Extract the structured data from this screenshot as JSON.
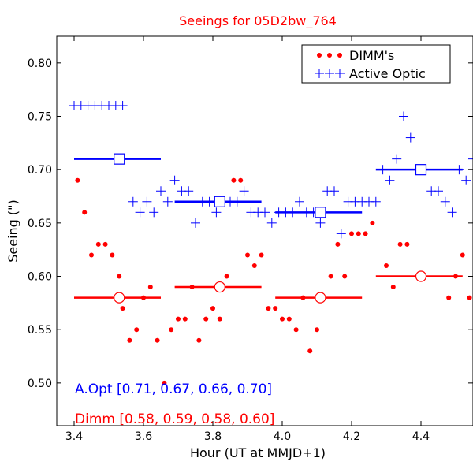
{
  "chart_data": {
    "type": "scatter",
    "title": "Seeings for 05D2bw_764",
    "xlabel": "Hour (UT at MMJD+1)",
    "ylabel": "Seeing (\")",
    "xlim": [
      3.35,
      4.55
    ],
    "ylim": [
      0.46,
      0.825
    ],
    "x_ticks": [
      "3.4",
      "3.6",
      "3.8",
      "4.0",
      "4.2",
      "4.4"
    ],
    "y_ticks": [
      "0.50",
      "0.55",
      "0.60",
      "0.65",
      "0.70",
      "0.75",
      "0.80"
    ],
    "grid": false,
    "legend_placement": "top-right",
    "colors": {
      "dimm": "#ff0000",
      "active_optic": "#0000ff",
      "title": "#ff0000"
    },
    "series": [
      {
        "name": "DIMM's",
        "marker": "dot",
        "color": "#ff0000",
        "points": [
          [
            3.41,
            0.69
          ],
          [
            3.43,
            0.66
          ],
          [
            3.45,
            0.62
          ],
          [
            3.47,
            0.63
          ],
          [
            3.49,
            0.63
          ],
          [
            3.51,
            0.62
          ],
          [
            3.53,
            0.6
          ],
          [
            3.54,
            0.57
          ],
          [
            3.56,
            0.54
          ],
          [
            3.58,
            0.55
          ],
          [
            3.6,
            0.58
          ],
          [
            3.62,
            0.59
          ],
          [
            3.64,
            0.54
          ],
          [
            3.66,
            0.5
          ],
          [
            3.68,
            0.55
          ],
          [
            3.7,
            0.56
          ],
          [
            3.72,
            0.56
          ],
          [
            3.74,
            0.59
          ],
          [
            3.76,
            0.54
          ],
          [
            3.78,
            0.56
          ],
          [
            3.8,
            0.57
          ],
          [
            3.82,
            0.56
          ],
          [
            3.84,
            0.6
          ],
          [
            3.86,
            0.69
          ],
          [
            3.88,
            0.69
          ],
          [
            3.9,
            0.62
          ],
          [
            3.92,
            0.61
          ],
          [
            3.94,
            0.62
          ],
          [
            3.96,
            0.57
          ],
          [
            3.98,
            0.57
          ],
          [
            4.0,
            0.56
          ],
          [
            4.02,
            0.56
          ],
          [
            4.04,
            0.55
          ],
          [
            4.06,
            0.58
          ],
          [
            4.08,
            0.53
          ],
          [
            4.1,
            0.55
          ],
          [
            4.12,
            0.58
          ],
          [
            4.14,
            0.6
          ],
          [
            4.16,
            0.63
          ],
          [
            4.18,
            0.6
          ],
          [
            4.2,
            0.64
          ],
          [
            4.22,
            0.64
          ],
          [
            4.24,
            0.64
          ],
          [
            4.26,
            0.65
          ],
          [
            4.3,
            0.61
          ],
          [
            4.32,
            0.59
          ],
          [
            4.34,
            0.63
          ],
          [
            4.36,
            0.63
          ],
          [
            4.48,
            0.58
          ],
          [
            4.5,
            0.6
          ],
          [
            4.52,
            0.62
          ],
          [
            4.54,
            0.58
          ],
          [
            4.56,
            0.59
          ]
        ]
      },
      {
        "name": "Active Optic",
        "marker": "plus",
        "color": "#0000ff",
        "points": [
          [
            3.4,
            0.76
          ],
          [
            3.42,
            0.76
          ],
          [
            3.44,
            0.76
          ],
          [
            3.46,
            0.76
          ],
          [
            3.48,
            0.76
          ],
          [
            3.5,
            0.76
          ],
          [
            3.52,
            0.76
          ],
          [
            3.54,
            0.76
          ],
          [
            3.57,
            0.67
          ],
          [
            3.59,
            0.66
          ],
          [
            3.61,
            0.67
          ],
          [
            3.63,
            0.66
          ],
          [
            3.65,
            0.68
          ],
          [
            3.67,
            0.67
          ],
          [
            3.69,
            0.69
          ],
          [
            3.71,
            0.68
          ],
          [
            3.73,
            0.68
          ],
          [
            3.75,
            0.65
          ],
          [
            3.77,
            0.67
          ],
          [
            3.79,
            0.67
          ],
          [
            3.81,
            0.66
          ],
          [
            3.83,
            0.67
          ],
          [
            3.85,
            0.67
          ],
          [
            3.87,
            0.67
          ],
          [
            3.89,
            0.68
          ],
          [
            3.91,
            0.66
          ],
          [
            3.93,
            0.66
          ],
          [
            3.95,
            0.66
          ],
          [
            3.97,
            0.65
          ],
          [
            3.99,
            0.66
          ],
          [
            4.01,
            0.66
          ],
          [
            4.03,
            0.66
          ],
          [
            4.05,
            0.67
          ],
          [
            4.07,
            0.66
          ],
          [
            4.09,
            0.66
          ],
          [
            4.11,
            0.65
          ],
          [
            4.13,
            0.68
          ],
          [
            4.15,
            0.68
          ],
          [
            4.17,
            0.64
          ],
          [
            4.19,
            0.67
          ],
          [
            4.21,
            0.67
          ],
          [
            4.23,
            0.67
          ],
          [
            4.25,
            0.67
          ],
          [
            4.27,
            0.67
          ],
          [
            4.29,
            0.7
          ],
          [
            4.31,
            0.69
          ],
          [
            4.33,
            0.71
          ],
          [
            4.35,
            0.75
          ],
          [
            4.37,
            0.73
          ],
          [
            4.39,
            0.7
          ],
          [
            4.41,
            0.7
          ],
          [
            4.43,
            0.68
          ],
          [
            4.45,
            0.68
          ],
          [
            4.47,
            0.67
          ],
          [
            4.49,
            0.66
          ],
          [
            4.51,
            0.7
          ],
          [
            4.53,
            0.69
          ],
          [
            4.55,
            0.71
          ],
          [
            4.57,
            0.7
          ]
        ]
      }
    ],
    "segment_means": [
      {
        "name": "Active Optic",
        "marker": "open-square",
        "color": "#0000ff",
        "segments": [
          {
            "x_start": 3.4,
            "x_end": 3.65,
            "x_mid": 3.53,
            "value": 0.71
          },
          {
            "x_start": 3.69,
            "x_end": 3.94,
            "x_mid": 3.82,
            "value": 0.67
          },
          {
            "x_start": 3.98,
            "x_end": 4.23,
            "x_mid": 4.11,
            "value": 0.66
          },
          {
            "x_start": 4.27,
            "x_end": 4.52,
            "x_mid": 4.4,
            "value": 0.7
          }
        ]
      },
      {
        "name": "Dimm",
        "marker": "open-circle",
        "color": "#ff0000",
        "segments": [
          {
            "x_start": 3.4,
            "x_end": 3.65,
            "x_mid": 3.53,
            "value": 0.58
          },
          {
            "x_start": 3.69,
            "x_end": 3.94,
            "x_mid": 3.82,
            "value": 0.59
          },
          {
            "x_start": 3.98,
            "x_end": 4.23,
            "x_mid": 4.11,
            "value": 0.58
          },
          {
            "x_start": 4.27,
            "x_end": 4.52,
            "x_mid": 4.4,
            "value": 0.6
          }
        ]
      }
    ],
    "annotations": {
      "aopt": "A.Opt [0.71, 0.67, 0.66, 0.70]",
      "dimm": "Dimm [0.58, 0.59, 0.58, 0.60]"
    },
    "legend": [
      {
        "label": "DIMM's",
        "marker": "dot",
        "color": "#ff0000"
      },
      {
        "label": "Active Optic",
        "marker": "plus",
        "color": "#0000ff"
      }
    ]
  }
}
